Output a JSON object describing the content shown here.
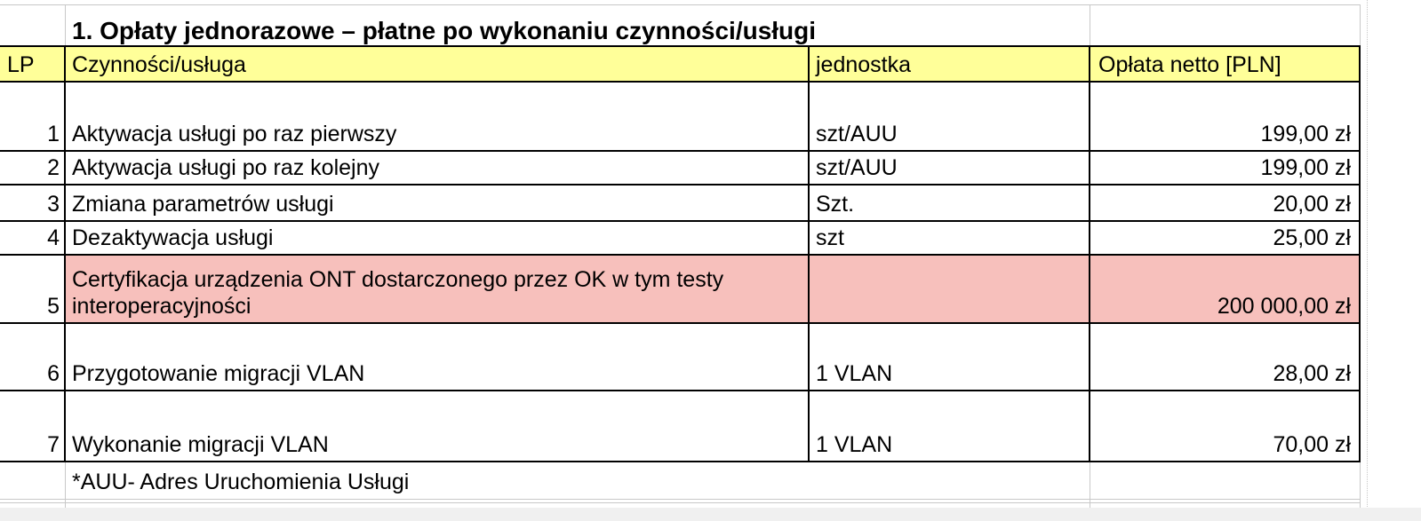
{
  "title": "1. Opłaty jednorazowe – płatne po wykonaniu czynności/usługi",
  "headers": {
    "lp": "LP",
    "service": "Czynności/usługa",
    "unit": "jednostka",
    "fee": "Opłata netto [PLN]"
  },
  "rows": [
    {
      "lp": "1",
      "service": "Aktywacja usługi po raz pierwszy",
      "unit": "szt/AUU",
      "fee": "199,00 zł"
    },
    {
      "lp": "2",
      "service": "Aktywacja usługi po raz kolejny",
      "unit": "szt/AUU",
      "fee": "199,00 zł"
    },
    {
      "lp": "3",
      "service": "Zmiana parametrów usługi",
      "unit": "Szt.",
      "fee": "20,00 zł"
    },
    {
      "lp": "4",
      "service": "Dezaktywacja usługi",
      "unit": "szt",
      "fee": "25,00 zł"
    },
    {
      "lp": "5",
      "service": "Certyfikacja urządzenia ONT dostarczonego przez OK w tym testy interoperacyjności",
      "unit": "",
      "fee": "200 000,00 zł"
    },
    {
      "lp": "6",
      "service": "Przygotowanie migracji VLAN",
      "unit": "1 VLAN",
      "fee": "28,00 zł"
    },
    {
      "lp": "7",
      "service": "Wykonanie migracji VLAN",
      "unit": "1 VLAN",
      "fee": "70,00 zł"
    }
  ],
  "note": "*AUU- Adres Uruchomienia Usługi",
  "colors": {
    "header_fill": "#ffff99",
    "highlight_fill": "#f7c0bc",
    "grid": "#c8c8c8"
  }
}
